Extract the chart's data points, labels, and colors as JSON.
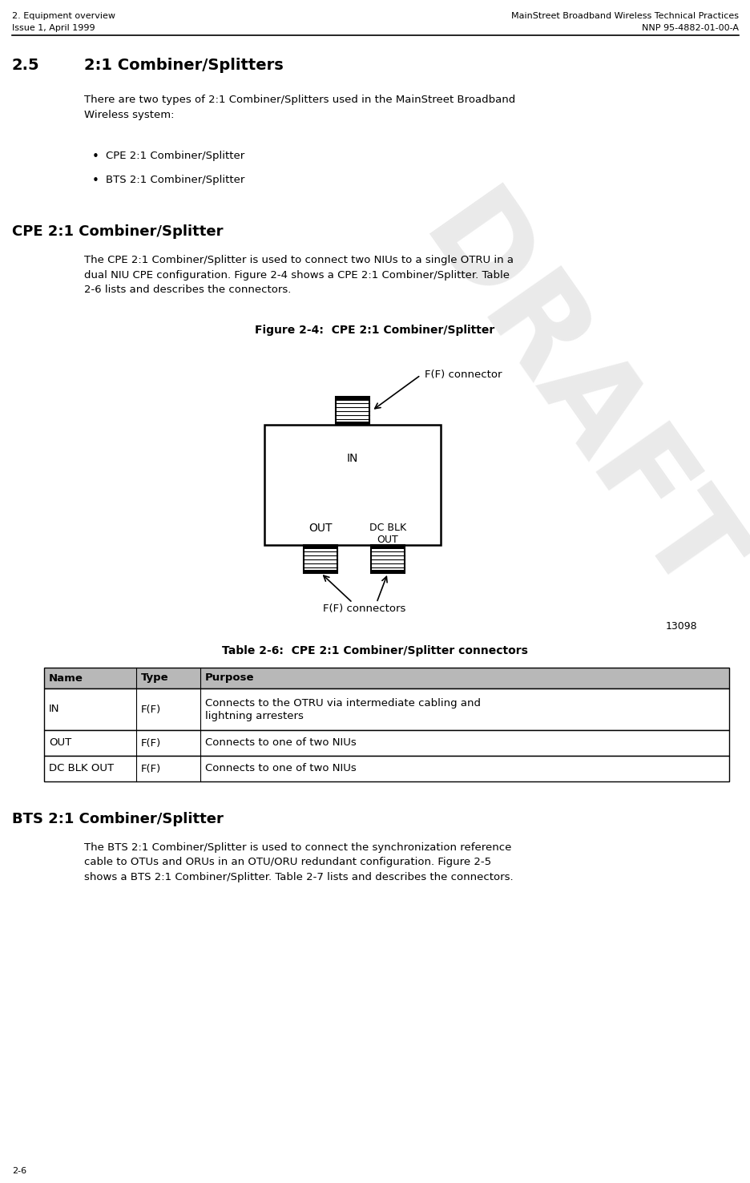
{
  "header_left_line1": "2. Equipment overview",
  "header_left_line2": "Issue 1, April 1999",
  "header_right_line1": "MainStreet Broadband Wireless Technical Practices",
  "header_right_line2": "NNP 95-4882-01-00-A",
  "section_number": "2.5",
  "section_title": "2:1 Combiner/Splitters",
  "intro_text": "There are two types of 2:1 Combiner/Splitters used in the MainStreet Broadband\nWireless system:",
  "bullet1": "CPE 2:1 Combiner/Splitter",
  "bullet2": "BTS 2:1 Combiner/Splitter",
  "subsection1_title": "CPE 2:1 Combiner/Splitter",
  "subsection1_body": "The CPE 2:1 Combiner/Splitter is used to connect two NIUs to a single OTRU in a\ndual NIU CPE configuration. Figure 2-4 shows a CPE 2:1 Combiner/Splitter. Table\n2-6 lists and describes the connectors.",
  "figure_caption": "Figure 2-4:  CPE 2:1 Combiner/Splitter",
  "fig_label_top": "F(F) connector",
  "fig_label_in": "IN",
  "fig_label_out": "OUT",
  "fig_label_dcblk": "DC BLK\nOUT",
  "fig_label_bottom": "F(F) connectors",
  "fig_number": "13098",
  "table_title": "Table 2-6:  CPE 2:1 Combiner/Splitter connectors",
  "table_headers": [
    "Name",
    "Type",
    "Purpose"
  ],
  "table_rows": [
    [
      "IN",
      "F(F)",
      "Connects to the OTRU via intermediate cabling and\nlightning arresters"
    ],
    [
      "OUT",
      "F(F)",
      "Connects to one of two NIUs"
    ],
    [
      "DC BLK OUT",
      "F(F)",
      "Connects to one of two NIUs"
    ]
  ],
  "subsection2_title": "BTS 2:1 Combiner/Splitter",
  "subsection2_body": "The BTS 2:1 Combiner/Splitter is used to connect the synchronization reference\ncable to OTUs and ORUs in an OTU/ORU redundant configuration. Figure 2-5\nshows a BTS 2:1 Combiner/Splitter. Table 2-7 lists and describes the connectors.",
  "footer_page": "2-6",
  "bg_color": "#ffffff",
  "text_color": "#000000",
  "header_font_size": 8.0,
  "section_num_font_size": 14,
  "section_title_font_size": 14,
  "subsection_font_size": 13,
  "body_font_size": 9.5,
  "caption_font_size": 10,
  "table_header_font_size": 9.5,
  "table_body_font_size": 9.5,
  "draft_color": "#cccccc",
  "draft_watermark": "DRAFT"
}
